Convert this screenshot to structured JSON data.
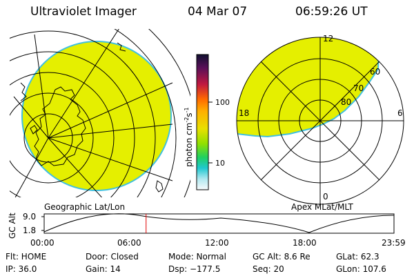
{
  "header": {
    "title": "Ultraviolet Imager",
    "date": "04 Mar 07",
    "time": "06:59:26 UT"
  },
  "left_map": {
    "label": "Geographic Lat/Lon"
  },
  "colorbar": {
    "unit_label": "photon cm",
    "unit_sup1": "-2",
    "unit_mid": "s",
    "unit_sup2": "-1",
    "ticks": [
      "100",
      "10"
    ],
    "colors": [
      "#101030",
      "#7a1050",
      "#d02020",
      "#ff9000",
      "#e8d800",
      "#80e000",
      "#20c8c8",
      "#ffffff"
    ]
  },
  "right_map": {
    "label": "Apex MLat/MLT",
    "mlt_labels": {
      "top": "12",
      "left": "18",
      "right": "6",
      "bottom": "0"
    },
    "mlat_labels": [
      "60",
      "70",
      "80"
    ]
  },
  "orbit_plot": {
    "ylabel": "GC Alt",
    "yticks": [
      "9.0",
      "1.8"
    ],
    "xticks": [
      "00:00",
      "06:00",
      "12:00",
      "18:00",
      "23:59"
    ],
    "current_time_hours": 6.99
  },
  "info": {
    "flt": "Flt: HOME",
    "door": "Door: Closed",
    "mode": "Mode: Normal",
    "gc_alt": "GC Alt: 8.6 Re",
    "glat": "GLat:  62.3",
    "ip": "IP: 36.0",
    "gain": "Gain: 14",
    "dsp": "Dsp: −177.5",
    "seq": "Seq: 20",
    "glon": "GLon: 107.6"
  },
  "colors": {
    "emission": "#e5ef00",
    "edge": "#40c0e0",
    "marker": "#e00000"
  }
}
